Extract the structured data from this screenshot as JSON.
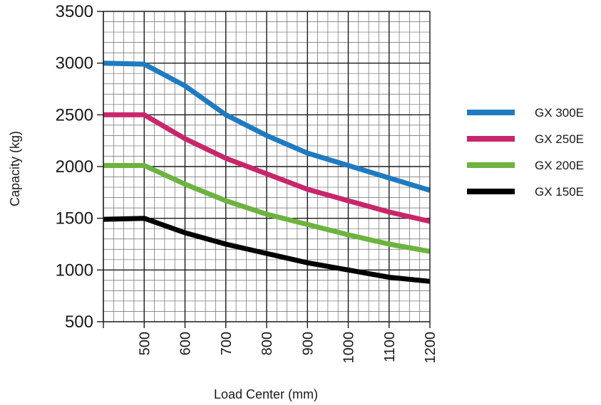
{
  "chart_data": {
    "type": "line",
    "xlabel": "Load Center  (mm)",
    "ylabel": "Capacity (kg)",
    "xlim": [
      400,
      1200
    ],
    "ylim": [
      500,
      3500
    ],
    "x_ticks": [
      500,
      600,
      700,
      800,
      900,
      1000,
      1100,
      1200
    ],
    "y_ticks": [
      500,
      1000,
      1500,
      2000,
      2500,
      3000,
      3500
    ],
    "x_ticks_labels": [
      "500",
      "600",
      "700",
      "800",
      "900",
      "1000",
      "1100",
      "1200"
    ],
    "y_ticks_labels": [
      "500",
      "1000",
      "1500",
      "2000",
      "2500",
      "3000",
      "3500"
    ],
    "grid": true,
    "legend_position": "right",
    "x": [
      400,
      500,
      600,
      700,
      800,
      900,
      1000,
      1100,
      1200
    ],
    "series": [
      {
        "name": "GX 300E",
        "color": "#1f7bc1",
        "values": [
          3000,
          2990,
          2780,
          2500,
          2300,
          2130,
          2010,
          1890,
          1770
        ]
      },
      {
        "name": "GX 250E",
        "color": "#c8266a",
        "values": [
          2500,
          2500,
          2270,
          2080,
          1930,
          1780,
          1670,
          1560,
          1470
        ]
      },
      {
        "name": "GX 200E",
        "color": "#6db33f",
        "values": [
          2010,
          2010,
          1830,
          1670,
          1540,
          1440,
          1340,
          1250,
          1180
        ]
      },
      {
        "name": "GX 150E",
        "color": "#000000",
        "values": [
          1490,
          1500,
          1360,
          1250,
          1160,
          1070,
          1000,
          930,
          890
        ]
      }
    ]
  }
}
